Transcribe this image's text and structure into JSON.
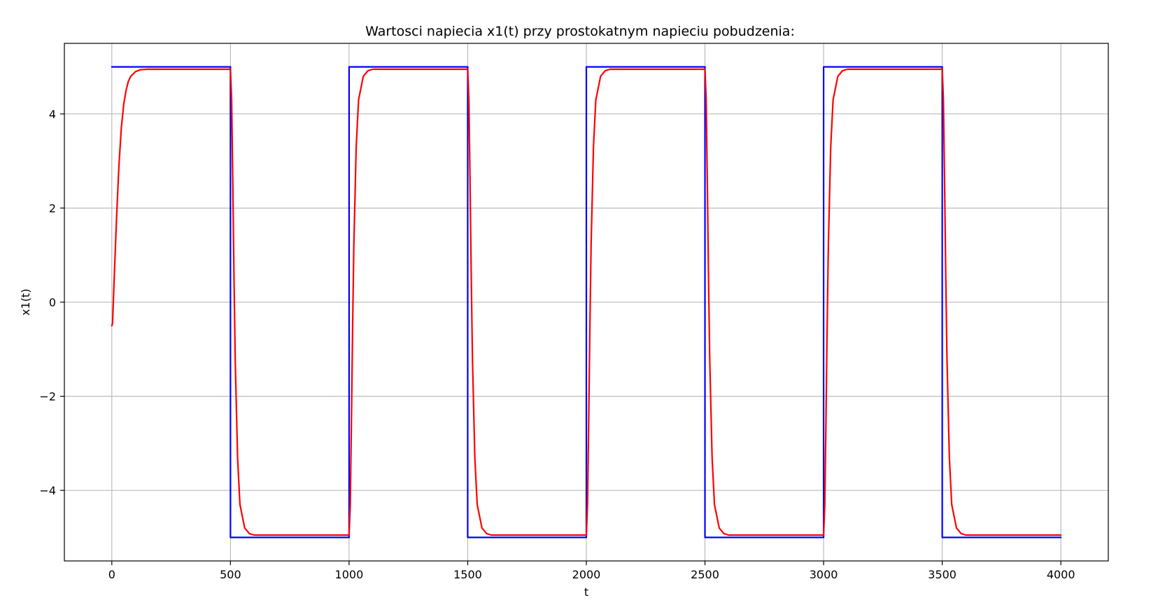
{
  "chart_data": {
    "type": "line",
    "title": "Wartosci napiecia x1(t) przy prostokatnym napieciu pobudzenia:",
    "xlabel": "t",
    "ylabel": "x1(t)",
    "xlim": [
      -200,
      4200
    ],
    "ylim": [
      -5.5,
      5.5
    ],
    "grid": true,
    "x_ticks": [
      0,
      500,
      1000,
      1500,
      2000,
      2500,
      3000,
      3500,
      4000
    ],
    "x_tick_labels": [
      "0",
      "500",
      "1000",
      "1500",
      "2000",
      "2500",
      "3000",
      "3500",
      "4000"
    ],
    "y_ticks": [
      -4,
      -2,
      0,
      2,
      4
    ],
    "y_tick_labels": [
      "−4",
      "−2",
      "0",
      "2",
      "4"
    ],
    "series": [
      {
        "color": "#0000ff",
        "style": "step",
        "x": [
          0,
          500,
          500,
          1000,
          1000,
          1500,
          1500,
          2000,
          2000,
          2500,
          2500,
          3000,
          3000,
          3500,
          3500,
          4000
        ],
        "y": [
          5,
          5,
          -5,
          -5,
          5,
          5,
          -5,
          -5,
          5,
          5,
          -5,
          -5,
          5,
          5,
          -5,
          -5
        ]
      },
      {
        "color": "#ff0000",
        "style": "line",
        "x": [
          0,
          3,
          10,
          20,
          30,
          40,
          50,
          60,
          70,
          80,
          100,
          120,
          150,
          200,
          300,
          500,
          505,
          510,
          515,
          520,
          530,
          540,
          560,
          580,
          600,
          650,
          1000,
          1005,
          1010,
          1015,
          1020,
          1030,
          1040,
          1060,
          1080,
          1100,
          1150,
          1500,
          1505,
          1510,
          1515,
          1520,
          1530,
          1540,
          1560,
          1580,
          1600,
          1650,
          2000,
          2005,
          2010,
          2015,
          2020,
          2030,
          2040,
          2060,
          2080,
          2100,
          2150,
          2500,
          2505,
          2510,
          2515,
          2520,
          2530,
          2540,
          2560,
          2580,
          2600,
          2650,
          3000,
          3005,
          3010,
          3015,
          3020,
          3030,
          3040,
          3060,
          3080,
          3100,
          3150,
          3500,
          3505,
          3510,
          3515,
          3520,
          3530,
          3540,
          3560,
          3580,
          3600,
          3650,
          4000
        ],
        "y": [
          -0.5,
          -0.45,
          0.5,
          1.8,
          2.9,
          3.7,
          4.2,
          4.5,
          4.7,
          4.8,
          4.9,
          4.94,
          4.95,
          4.95,
          4.95,
          4.95,
          4.3,
          2.5,
          0.5,
          -1.2,
          -3.3,
          -4.3,
          -4.8,
          -4.92,
          -4.95,
          -4.95,
          -4.95,
          -4.3,
          -2.5,
          -0.5,
          1.2,
          3.3,
          4.3,
          4.8,
          4.92,
          4.95,
          4.95,
          4.95,
          4.3,
          2.5,
          0.5,
          -1.2,
          -3.3,
          -4.3,
          -4.8,
          -4.92,
          -4.95,
          -4.95,
          -4.95,
          -4.3,
          -2.5,
          -0.5,
          1.2,
          3.3,
          4.3,
          4.8,
          4.92,
          4.95,
          4.95,
          4.95,
          4.3,
          2.5,
          0.5,
          -1.2,
          -3.3,
          -4.3,
          -4.8,
          -4.92,
          -4.95,
          -4.95,
          -4.95,
          -4.3,
          -2.5,
          -0.5,
          1.2,
          3.3,
          4.3,
          4.8,
          4.92,
          4.95,
          4.95,
          4.95,
          4.3,
          2.5,
          0.5,
          -1.2,
          -3.3,
          -4.3,
          -4.8,
          -4.92,
          -4.95,
          -4.95,
          -4.95
        ]
      }
    ]
  }
}
